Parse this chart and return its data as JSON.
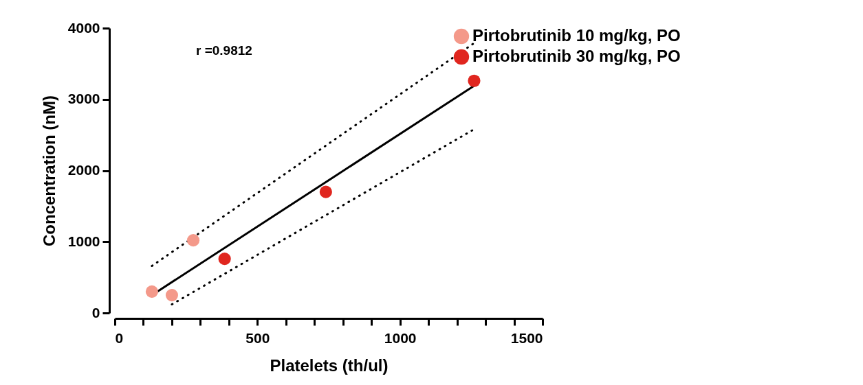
{
  "chart_data": {
    "type": "scatter",
    "xlabel": "Platelets (th/ul)",
    "ylabel": "Concentration (nM)",
    "xlim": [
      0,
      1500
    ],
    "ylim": [
      0,
      4000
    ],
    "xticks": [
      0,
      {
        "value": 100,
        "label": null
      },
      {
        "value": 200,
        "label": null
      },
      {
        "value": 300,
        "label": null
      },
      {
        "value": 400,
        "label": null
      },
      500,
      {
        "value": 600,
        "label": null
      },
      {
        "value": 700,
        "label": null
      },
      {
        "value": 800,
        "label": null
      },
      {
        "value": 900,
        "label": null
      },
      1000,
      {
        "value": 1100,
        "label": null
      },
      {
        "value": 1200,
        "label": null
      },
      {
        "value": 1300,
        "label": null
      },
      {
        "value": 1400,
        "label": null
      },
      1500
    ],
    "yticks": [
      0,
      1000,
      2000,
      3000,
      4000
    ],
    "grid": false,
    "legend": "top right",
    "marker": "circle",
    "annotations": [
      "r =0.9812"
    ],
    "series": [
      {
        "name": "Pirtobrutinib 10 mg/kg, PO",
        "color": "#f4998a",
        "x": [
          130,
          200,
          275
        ],
        "values": [
          300,
          250,
          1020
        ]
      },
      {
        "name": "Pirtobrutinib 30 mg/kg, PO",
        "color": "#e0261f",
        "x": [
          385,
          740,
          1260
        ],
        "values": [
          760,
          1700,
          3260
        ]
      },
      {
        "type": "line",
        "marker": "none",
        "color": "#000000",
        "line_style": "solid",
        "x": [
          145,
          1260
        ],
        "values": [
          290,
          3190
        ]
      },
      {
        "type": "line",
        "marker": "none",
        "color": "#000000",
        "line_style": "dotted",
        "x": [
          130,
          1260
        ],
        "values": [
          660,
          3790
        ]
      },
      {
        "type": "line",
        "marker": "none",
        "color": "#000000",
        "line_style": "dotted",
        "x": [
          200,
          1260
        ],
        "values": [
          120,
          2580
        ]
      }
    ]
  }
}
